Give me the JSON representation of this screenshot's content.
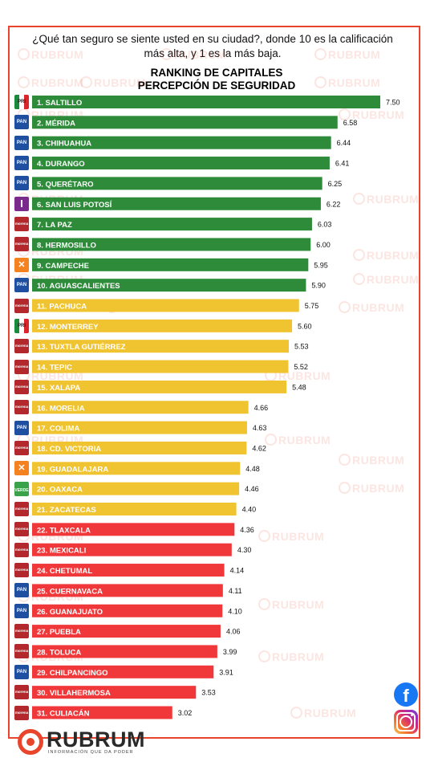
{
  "header": {
    "question": "¿Qué tan seguro se siente usted en su ciudad?, donde 10 es la calificación más alta, y  1 es la más baja.",
    "title_line1": "RANKING DE CAPITALES",
    "title_line2": "PERCEPCIÓN DE SEGURIDAD"
  },
  "brand": {
    "name": "RUBRUM",
    "tagline": "INFORMACIÓN QUE DA PODER",
    "watermark": "RUBRUM",
    "accent_color": "#e8452c"
  },
  "social": {
    "facebook_icon": "facebook-icon",
    "instagram_icon": "instagram-icon"
  },
  "colors": {
    "green": "#2e8b3a",
    "yellow": "#f0c330",
    "red": "#f0383b",
    "party_PRI": "#1a8b3e",
    "party_PAN": "#1e4fa0",
    "party_MORENA": "#b3282d",
    "party_MC": "#f58220",
    "party_IND": "#7a2a8c",
    "party_PVEM": "#3aa34a"
  },
  "chart_data": {
    "type": "bar",
    "orientation": "horizontal",
    "title": "RANKING DE CAPITALES PERCEPCIÓN DE SEGURIDAD",
    "xlim": [
      0,
      7.5
    ],
    "categories": [
      "1. SALTILLO",
      "2. MÉRIDA",
      "3. CHIHUAHUA",
      "4. DURANGO",
      "5. QUERÉTARO",
      "6. SAN LUIS POTOSÍ",
      "7. LA PAZ",
      "8. HERMOSILLO",
      "9. CAMPECHE",
      "10. AGUASCALIENTES",
      "11. PACHUCA",
      "12. MONTERREY",
      "13. TUXTLA GUTIÉRREZ",
      "14. TEPIC",
      "15. XALAPA",
      "16. MORELIA",
      "17. COLIMA",
      "18. CD. VICTORIA",
      "19. GUADALAJARA",
      "20. OAXACA",
      "21. ZACATECAS",
      "22. TLAXCALA",
      "23. MEXICALI",
      "24. CHETUMAL",
      "25. CUERNAVACA",
      "26. GUANAJUATO",
      "27. PUEBLA",
      "28. TOLUCA",
      "29. CHILPANCINGO",
      "30. VILLAHERMOSA",
      "31. CULIACÁN"
    ],
    "values": [
      7.5,
      6.58,
      6.44,
      6.41,
      6.25,
      6.22,
      6.03,
      6.0,
      5.95,
      5.9,
      5.75,
      5.6,
      5.53,
      5.52,
      5.48,
      4.66,
      4.63,
      4.62,
      4.48,
      4.46,
      4.4,
      4.36,
      4.3,
      4.14,
      4.11,
      4.1,
      4.06,
      3.99,
      3.91,
      3.53,
      3.02
    ],
    "value_labels": [
      "7.50",
      "6.58",
      "6.44",
      "6.41",
      "6.25",
      "6.22",
      "6.03",
      "6.00",
      "5.95",
      "5.90",
      "5.75",
      "5.60",
      "5.53",
      "5.52",
      "5.48",
      "4.66",
      "4.63",
      "4.62",
      "4.48",
      "4.46",
      "4.40",
      "4.36",
      "4.30",
      "4.14",
      "4.11",
      "4.10",
      "4.06",
      "3.99",
      "3.91",
      "3.53",
      "3.02"
    ],
    "bar_colors": [
      "green",
      "green",
      "green",
      "green",
      "green",
      "green",
      "green",
      "green",
      "green",
      "green",
      "yellow",
      "yellow",
      "yellow",
      "yellow",
      "yellow",
      "yellow",
      "yellow",
      "yellow",
      "yellow",
      "yellow",
      "yellow",
      "red",
      "red",
      "red",
      "red",
      "red",
      "red",
      "red",
      "red",
      "red",
      "red"
    ],
    "party_badges": [
      "PRI",
      "PAN",
      "PAN",
      "PAN",
      "PAN",
      "IND",
      "MORENA",
      "MORENA",
      "MC",
      "PAN",
      "MORENA",
      "PRI",
      "MORENA",
      "MORENA",
      "MORENA",
      "MORENA",
      "PAN",
      "MORENA",
      "MC",
      "PVEM",
      "MORENA",
      "MORENA",
      "MORENA",
      "MORENA",
      "PAN",
      "PAN",
      "MORENA",
      "MORENA",
      "PAN",
      "MORENA",
      "MORENA"
    ],
    "badge_text": {
      "PRI": "PRI",
      "PAN": "PAN",
      "MORENA": "morena",
      "MC": "",
      "IND": "I",
      "PVEM": "VERDE"
    },
    "grid": false,
    "legend": "none"
  }
}
